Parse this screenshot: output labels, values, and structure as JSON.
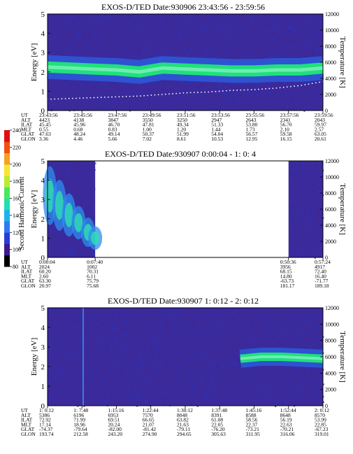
{
  "colors": {
    "background": "#3a2a9c",
    "band": "#20e07a",
    "band_core": "#7ff0c0",
    "temp_line": "#ffffff"
  },
  "colorbar": {
    "label": "Second Harmonic Current",
    "ticks": [
      "80",
      "100",
      "120",
      "140",
      "160",
      "180",
      "200",
      "220",
      "240"
    ],
    "range": [
      80,
      240
    ]
  },
  "chart_data": [
    {
      "type": "heatmap",
      "title": "EXOS-D/TED   Date:930906  23:43:56 - 23:59:56",
      "ylabel": "Energy [eV]",
      "y2label": "Temperature [K]",
      "ylim": [
        0,
        5
      ],
      "y2lim": [
        0,
        12000
      ],
      "yticks": [
        "0",
        "1",
        "2",
        "3",
        "4",
        "5"
      ],
      "y2ticks": [
        "0",
        "2000",
        "4000",
        "6000",
        "8000",
        "10000",
        "12000"
      ],
      "data_coverage": [
        [
          0,
          1
        ]
      ],
      "band_energy_eV": [
        2.25,
        2.2,
        2.15,
        2.1,
        2.0,
        2.2,
        2.15,
        2.1,
        2.05,
        2.05,
        2.1,
        2.1,
        2.2
      ],
      "temperature_K": [
        1400,
        1500,
        1600,
        1700,
        1800,
        2000,
        2200,
        2300,
        2500,
        2600,
        2800,
        3100,
        3600
      ],
      "table": {
        "labels": [
          "UT",
          "ALT",
          "ILAT",
          "MLT",
          "GLAT",
          "GLON"
        ],
        "columns": [
          [
            "23:43:56",
            "4423",
            "45.45",
            "0.55",
            "47.63",
            "3.36"
          ],
          [
            "23:45:56",
            "4138",
            "45.96",
            "0.68",
            "48.24",
            "4.46"
          ],
          [
            "23:47:56",
            "3847",
            "46.70",
            "0.83",
            "49.14",
            "5.66"
          ],
          [
            "23:49:56",
            "3550",
            "47.81",
            "1.00",
            "50.37",
            "7.02"
          ],
          [
            "23:51:56",
            "3250",
            "49.34",
            "1.20",
            "51.99",
            "8.61"
          ],
          [
            "23:53:56",
            "2947",
            "51.33",
            "1.44",
            "54.04",
            "10.53"
          ],
          [
            "23:55:56",
            "2643",
            "53.80",
            "1.73",
            "56.57",
            "12.95"
          ],
          [
            "23:57:56",
            "2341",
            "56.70",
            "2.10",
            "59.58",
            "16.15"
          ],
          [
            "23:59:56",
            "2043",
            "59.97",
            "2.57",
            "63.05",
            "20.61"
          ]
        ]
      }
    },
    {
      "type": "heatmap",
      "title": "EXOS-D/TED   Date:930907  0:00:04 - 1: 0: 4",
      "ylabel": "Energy [eV]",
      "y2label": "Temperature [K]",
      "ylim": [
        0,
        5
      ],
      "y2lim": [
        0,
        12000
      ],
      "yticks": [
        "0",
        "1",
        "2",
        "3",
        "4",
        "5"
      ],
      "y2ticks": [
        "0",
        "2000",
        "4000",
        "6000",
        "8000",
        "10000",
        "12000"
      ],
      "data_coverage": [
        [
          0,
          0.173
        ],
        [
          0.875,
          1
        ]
      ],
      "table": {
        "labels": [
          "UT",
          "ALT",
          "ILAT",
          "MLT",
          "GLAT",
          "GLON"
        ],
        "columns": [
          [
            "0:00:04",
            "2024",
            "60.20",
            "2.60",
            "63.30",
            "20.97"
          ],
          [
            "0:07:40",
            "1002",
            "70.31",
            "6.11",
            "75.79",
            "75.68"
          ],
          [
            "0:50:36",
            "3956",
            "68.15",
            "14.80",
            "-63.73",
            "181.17"
          ],
          [
            "0:57:24",
            "4917",
            "72.40",
            "16.40",
            "-71.77",
            "189.18"
          ]
        ],
        "col_fraction": [
          0,
          0.173,
          0.875,
          1
        ]
      }
    },
    {
      "type": "heatmap",
      "title": "EXOS-D/TED   Date:930907  1: 0:12 - 2: 0:12",
      "ylabel": "Energy [eV]",
      "y2label": "Temperature [K]",
      "ylim": [
        0,
        5
      ],
      "y2lim": [
        0,
        12000
      ],
      "yticks": [
        "0",
        "1",
        "2",
        "3",
        "4",
        "5"
      ],
      "y2ticks": [
        "0",
        "2000",
        "4000",
        "6000",
        "8000",
        "10000",
        "12000"
      ],
      "data_coverage": [
        [
          0,
          1
        ]
      ],
      "band_energy_eV": [
        2.4,
        2.5,
        2.5,
        2.45,
        2.4
      ],
      "band_span": [
        0.7,
        1.0
      ],
      "table": {
        "labels": [
          "UT",
          "ALT",
          "ILAT",
          "MLT",
          "GLAT",
          "GLON"
        ],
        "columns": [
          [
            "1: 0:12",
            "5386",
            "72.92",
            "17.14",
            "-74.37",
            "193.74"
          ],
          [
            "1: 7:48",
            "6196",
            "71.99",
            "18.96",
            "-79.64",
            "212.58"
          ],
          [
            "1:15:16",
            "6953",
            "69.51",
            "20.24",
            "-82.00",
            "243.20"
          ],
          [
            "1:22:44",
            "7570",
            "66.65",
            "21.07",
            "-81.42",
            "274.90"
          ],
          [
            "1:30:12",
            "8048",
            "63.82",
            "21.63",
            "-79.11",
            "294.65"
          ],
          [
            "1:37:48",
            "8391",
            "61.08",
            "22.05",
            "-76.20",
            "305.63"
          ],
          [
            "1:45:16",
            "8588",
            "58.56",
            "22.37",
            "-73.21",
            "311.95"
          ],
          [
            "1:52:44",
            "8648",
            "56.19",
            "22.63",
            "-70.21",
            "316.06"
          ],
          [
            "2: 0:12",
            "8570",
            "53.99",
            "22.85",
            "-67.23",
            "319.01"
          ]
        ]
      }
    }
  ]
}
